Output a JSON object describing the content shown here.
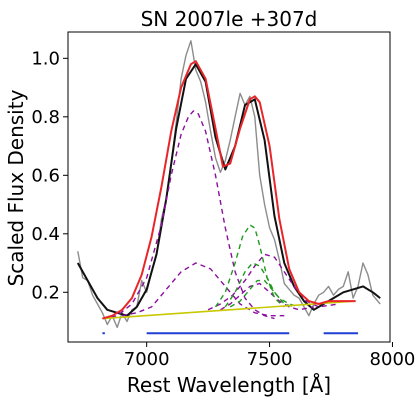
{
  "chart_data": {
    "type": "line",
    "title": "SN 2007le  +307d",
    "xlabel": "Rest Wavelength [Å]",
    "ylabel": "Scaled Flux Density",
    "xlim": [
      6680,
      7990
    ],
    "ylim": [
      0.03,
      1.09
    ],
    "xticks": [
      7000,
      7500,
      8000
    ],
    "yticks": [
      0.2,
      0.4,
      0.6,
      0.8,
      1.0
    ],
    "xtick_labels": [
      "7000",
      "7500",
      "8000"
    ],
    "ytick_labels": [
      "0.2",
      "0.4",
      "0.6",
      "0.8",
      "1.0"
    ],
    "colors": {
      "raw": "#8c8c8c",
      "smoothed": "#111111",
      "fit": "#e8262a",
      "purple_components": "#8b0f9e",
      "green_components": "#1f9a1f",
      "baseline": "#c8c800",
      "ranges": "#1f3fd6"
    },
    "series": [
      {
        "key": "raw",
        "x": [
          6720,
          6740,
          6760,
          6780,
          6800,
          6820,
          6840,
          6860,
          6880,
          6900,
          6920,
          6940,
          6960,
          6980,
          7000,
          7020,
          7040,
          7060,
          7080,
          7100,
          7120,
          7140,
          7160,
          7180,
          7200,
          7220,
          7240,
          7260,
          7280,
          7300,
          7320,
          7340,
          7360,
          7380,
          7400,
          7420,
          7440,
          7460,
          7480,
          7500,
          7520,
          7540,
          7560,
          7580,
          7600,
          7620,
          7640,
          7660,
          7680,
          7700,
          7720,
          7740,
          7760,
          7780,
          7800,
          7820,
          7840,
          7860,
          7880,
          7900,
          7920,
          7940,
          7950
        ],
        "y": [
          0.34,
          0.25,
          0.24,
          0.19,
          0.16,
          0.13,
          0.09,
          0.12,
          0.08,
          0.13,
          0.1,
          0.14,
          0.15,
          0.24,
          0.2,
          0.27,
          0.33,
          0.45,
          0.52,
          0.64,
          0.78,
          0.93,
          1.01,
          1.06,
          0.96,
          0.92,
          0.85,
          0.75,
          0.66,
          0.61,
          0.65,
          0.72,
          0.8,
          0.88,
          0.84,
          0.87,
          0.8,
          0.6,
          0.5,
          0.42,
          0.38,
          0.31,
          0.23,
          0.21,
          0.19,
          0.18,
          0.15,
          0.12,
          0.16,
          0.19,
          0.2,
          0.22,
          0.19,
          0.21,
          0.22,
          0.27,
          0.18,
          0.22,
          0.3,
          0.26,
          0.19,
          0.17,
          0.16
        ]
      },
      {
        "key": "smoothed",
        "x": [
          6720,
          6760,
          6800,
          6840,
          6880,
          6920,
          6960,
          7000,
          7040,
          7080,
          7120,
          7160,
          7200,
          7240,
          7280,
          7320,
          7360,
          7400,
          7440,
          7480,
          7520,
          7560,
          7600,
          7640,
          7680,
          7720,
          7760,
          7800,
          7840,
          7880,
          7920,
          7950
        ],
        "y": [
          0.3,
          0.24,
          0.18,
          0.14,
          0.13,
          0.12,
          0.15,
          0.21,
          0.33,
          0.52,
          0.76,
          0.93,
          0.98,
          0.92,
          0.73,
          0.62,
          0.7,
          0.84,
          0.86,
          0.72,
          0.46,
          0.3,
          0.22,
          0.17,
          0.14,
          0.16,
          0.18,
          0.2,
          0.21,
          0.22,
          0.2,
          0.18
        ]
      },
      {
        "key": "fit",
        "x": [
          6820,
          6860,
          6900,
          6940,
          6980,
          7020,
          7060,
          7100,
          7140,
          7180,
          7200,
          7240,
          7280,
          7310,
          7340,
          7380,
          7420,
          7440,
          7460,
          7500,
          7540,
          7580,
          7620,
          7660,
          7700,
          7740,
          7780,
          7820,
          7850
        ],
        "y": [
          0.11,
          0.12,
          0.14,
          0.18,
          0.26,
          0.39,
          0.56,
          0.75,
          0.9,
          0.98,
          0.99,
          0.93,
          0.76,
          0.63,
          0.64,
          0.76,
          0.86,
          0.87,
          0.85,
          0.7,
          0.45,
          0.28,
          0.2,
          0.17,
          0.16,
          0.17,
          0.17,
          0.17,
          0.17
        ]
      },
      {
        "key": "purple_main",
        "x": [
          6820,
          6880,
          6940,
          7000,
          7060,
          7100,
          7140,
          7170,
          7190,
          7210,
          7240,
          7280,
          7320,
          7360,
          7400,
          7440,
          7480,
          7520
        ],
        "y": [
          0.11,
          0.12,
          0.16,
          0.25,
          0.43,
          0.6,
          0.74,
          0.8,
          0.82,
          0.81,
          0.75,
          0.6,
          0.42,
          0.27,
          0.18,
          0.14,
          0.12,
          0.11
        ]
      },
      {
        "key": "purple_broad_1",
        "x": [
          6900,
          6960,
          7020,
          7080,
          7140,
          7200,
          7260,
          7320,
          7380,
          7440,
          7500,
          7560
        ],
        "y": [
          0.12,
          0.13,
          0.15,
          0.21,
          0.27,
          0.3,
          0.28,
          0.22,
          0.16,
          0.13,
          0.12,
          0.12
        ]
      },
      {
        "key": "purple_broad_2",
        "x": [
          7250,
          7300,
          7350,
          7400,
          7440,
          7480,
          7520,
          7560,
          7600,
          7650,
          7700,
          7780
        ],
        "y": [
          0.14,
          0.16,
          0.19,
          0.24,
          0.29,
          0.33,
          0.32,
          0.27,
          0.22,
          0.17,
          0.15,
          0.16
        ]
      },
      {
        "key": "purple_broad_3",
        "x": [
          7300,
          7340,
          7380,
          7420,
          7460,
          7500,
          7540,
          7580,
          7620,
          7680
        ],
        "y": [
          0.14,
          0.16,
          0.19,
          0.22,
          0.23,
          0.2,
          0.17,
          0.15,
          0.14,
          0.15
        ]
      },
      {
        "key": "green_main",
        "x": [
          7280,
          7320,
          7360,
          7390,
          7420,
          7440,
          7460,
          7490,
          7520,
          7560
        ],
        "y": [
          0.15,
          0.2,
          0.3,
          0.39,
          0.43,
          0.42,
          0.36,
          0.25,
          0.18,
          0.15
        ]
      },
      {
        "key": "green_second",
        "x": [
          7320,
          7360,
          7400,
          7430,
          7460,
          7490,
          7520,
          7560,
          7600
        ],
        "y": [
          0.15,
          0.2,
          0.27,
          0.3,
          0.29,
          0.25,
          0.2,
          0.16,
          0.15
        ]
      },
      {
        "key": "green_third",
        "x": [
          7340,
          7380,
          7420,
          7450,
          7480,
          7510,
          7540,
          7580,
          7620
        ],
        "y": [
          0.15,
          0.17,
          0.21,
          0.24,
          0.24,
          0.21,
          0.18,
          0.16,
          0.15
        ]
      },
      {
        "key": "baseline",
        "x": [
          6820,
          7850
        ],
        "y": [
          0.11,
          0.17
        ]
      }
    ],
    "ranges": [
      {
        "x_start": 6820,
        "x_end": 6830,
        "y": 0.06
      },
      {
        "x_start": 7000,
        "x_end": 7580,
        "y": 0.06
      },
      {
        "x_start": 7720,
        "x_end": 7860,
        "y": 0.06
      }
    ]
  }
}
